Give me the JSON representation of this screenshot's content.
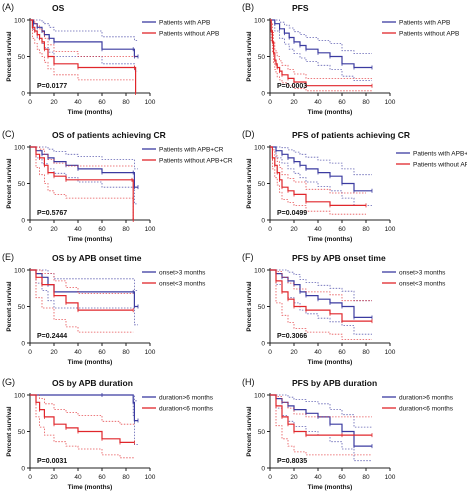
{
  "colors": {
    "blue": "#3b3ba0",
    "red": "#e0262b",
    "axis": "#222222"
  },
  "chart_data": [
    {
      "type": "line",
      "panel_label": "(A)",
      "title": "OS",
      "xlabel": "Time (months)",
      "ylabel": "Percent survival",
      "xticks": [
        "0",
        "20",
        "40",
        "60",
        "80",
        "100"
      ],
      "yticks": [
        "0",
        "50",
        "100"
      ],
      "xlim": [
        0,
        100
      ],
      "ylim": [
        0,
        100
      ],
      "pvalue": "P=0.0177",
      "legend": "top-right",
      "series": [
        {
          "name": "Patients with APB",
          "color": "blue",
          "x": [
            0,
            3,
            6,
            10,
            12,
            16,
            20,
            60,
            86,
            87,
            90
          ],
          "y": [
            100,
            95,
            90,
            85,
            80,
            75,
            70,
            60,
            60,
            50,
            50
          ],
          "ci_upper": [
            100,
            100,
            100,
            97,
            95,
            90,
            85,
            77,
            77,
            72,
            72
          ],
          "ci_lower": [
            100,
            85,
            75,
            68,
            62,
            56,
            50,
            40,
            40,
            30,
            30
          ]
        },
        {
          "name": "Patients without APB",
          "color": "red",
          "x": [
            0,
            2,
            4,
            6,
            8,
            10,
            12,
            15,
            20,
            40,
            87,
            88
          ],
          "y": [
            100,
            90,
            85,
            80,
            75,
            70,
            60,
            50,
            40,
            35,
            35,
            0
          ],
          "ci_upper": [
            100,
            100,
            95,
            92,
            88,
            84,
            75,
            66,
            57,
            50,
            50,
            50
          ],
          "ci_lower": [
            100,
            75,
            68,
            60,
            55,
            50,
            42,
            33,
            25,
            18,
            18,
            0
          ]
        }
      ]
    },
    {
      "type": "line",
      "panel_label": "(B)",
      "title": "PFS",
      "xlabel": "Time (months)",
      "ylabel": "Percent survival",
      "xticks": [
        "0",
        "20",
        "40",
        "60",
        "80",
        "100"
      ],
      "yticks": [
        "0",
        "50",
        "100"
      ],
      "xlim": [
        0,
        100
      ],
      "ylim": [
        0,
        100
      ],
      "pvalue": "P=0.0003",
      "legend": "top-right",
      "series": [
        {
          "name": "Patients with APB",
          "color": "blue",
          "x": [
            0,
            4,
            8,
            12,
            16,
            20,
            25,
            30,
            40,
            50,
            60,
            70,
            85
          ],
          "y": [
            100,
            95,
            88,
            82,
            76,
            70,
            65,
            60,
            55,
            50,
            40,
            35,
            35
          ],
          "ci_upper": [
            100,
            100,
            97,
            93,
            89,
            84,
            80,
            76,
            72,
            68,
            58,
            54,
            54
          ],
          "ci_lower": [
            100,
            85,
            75,
            67,
            60,
            54,
            48,
            43,
            38,
            32,
            23,
            17,
            17
          ]
        },
        {
          "name": "Patients without APB",
          "color": "red",
          "x": [
            0,
            1,
            2,
            3,
            4,
            5,
            6,
            8,
            10,
            15,
            20,
            30,
            85
          ],
          "y": [
            100,
            85,
            70,
            55,
            45,
            40,
            35,
            30,
            25,
            20,
            15,
            10,
            10
          ],
          "ci_upper": [
            100,
            95,
            83,
            70,
            60,
            55,
            50,
            44,
            38,
            32,
            26,
            20,
            20
          ],
          "ci_lower": [
            100,
            72,
            56,
            41,
            32,
            27,
            22,
            18,
            14,
            10,
            6,
            3,
            3
          ]
        }
      ]
    },
    {
      "type": "line",
      "panel_label": "(C)",
      "title": "OS of patients achieving CR",
      "xlabel": "Time (months)",
      "ylabel": "Percent survival",
      "xticks": [
        "0",
        "20",
        "40",
        "60",
        "80",
        "100"
      ],
      "yticks": [
        "0",
        "50",
        "100"
      ],
      "xlim": [
        0,
        100
      ],
      "ylim": [
        0,
        100
      ],
      "pvalue": "P=0.5767",
      "legend": "top-right",
      "series": [
        {
          "name": "Patients with APB+CR",
          "color": "blue",
          "x": [
            0,
            5,
            10,
            15,
            20,
            30,
            40,
            60,
            86,
            87,
            90
          ],
          "y": [
            100,
            95,
            90,
            85,
            80,
            75,
            70,
            65,
            65,
            45,
            45
          ],
          "ci_upper": [
            100,
            100,
            100,
            97,
            94,
            90,
            87,
            83,
            83,
            70,
            70
          ],
          "ci_lower": [
            100,
            85,
            77,
            70,
            64,
            58,
            52,
            45,
            45,
            22,
            22
          ]
        },
        {
          "name": "Patients without APB+CR",
          "color": "red",
          "x": [
            0,
            5,
            8,
            12,
            15,
            20,
            30,
            85,
            86
          ],
          "y": [
            100,
            90,
            85,
            75,
            65,
            60,
            55,
            55,
            0
          ],
          "ci_upper": [
            100,
            100,
            97,
            90,
            83,
            78,
            74,
            74,
            74
          ],
          "ci_lower": [
            100,
            72,
            62,
            50,
            40,
            35,
            30,
            30,
            0
          ]
        }
      ]
    },
    {
      "type": "line",
      "panel_label": "(D)",
      "title": "PFS of patients achieving CR",
      "xlabel": "Time (months)",
      "ylabel": "Percent survival",
      "xticks": [
        "0",
        "20",
        "40",
        "60",
        "80",
        "100"
      ],
      "yticks": [
        "0",
        "50",
        "100"
      ],
      "xlim": [
        0,
        100
      ],
      "ylim": [
        0,
        100
      ],
      "pvalue": "P=0.0499",
      "legend": "right",
      "series": [
        {
          "name": "Patients with APB+CR",
          "color": "blue",
          "x": [
            0,
            5,
            10,
            15,
            20,
            25,
            30,
            40,
            50,
            60,
            70,
            85
          ],
          "y": [
            100,
            95,
            90,
            85,
            80,
            75,
            70,
            65,
            60,
            50,
            40,
            40
          ],
          "ci_upper": [
            100,
            100,
            99,
            96,
            93,
            90,
            86,
            82,
            78,
            70,
            62,
            62
          ],
          "ci_lower": [
            100,
            85,
            78,
            70,
            64,
            58,
            52,
            46,
            40,
            30,
            20,
            20
          ]
        },
        {
          "name": "Patients without APB+CR",
          "color": "red",
          "x": [
            0,
            2,
            4,
            6,
            8,
            10,
            15,
            20,
            30,
            50,
            80
          ],
          "y": [
            100,
            85,
            75,
            65,
            55,
            45,
            40,
            35,
            25,
            20,
            20
          ],
          "ci_upper": [
            100,
            96,
            88,
            80,
            72,
            62,
            57,
            52,
            42,
            37,
            37
          ],
          "ci_lower": [
            100,
            70,
            58,
            48,
            38,
            28,
            24,
            20,
            12,
            8,
            8
          ]
        }
      ]
    },
    {
      "type": "line",
      "panel_label": "(E)",
      "title": "OS by APB onset time",
      "xlabel": "Time (months)",
      "ylabel": "Percent survival",
      "xticks": [
        "0",
        "20",
        "40",
        "60",
        "80",
        "100"
      ],
      "yticks": [
        "0",
        "50",
        "100"
      ],
      "xlim": [
        0,
        100
      ],
      "ylim": [
        0,
        100
      ],
      "pvalue": "P=0.2444",
      "legend": "top-right",
      "series": [
        {
          "name": "onset>3 months",
          "color": "blue",
          "x": [
            0,
            5,
            10,
            15,
            20,
            86,
            87,
            90
          ],
          "y": [
            100,
            95,
            90,
            80,
            70,
            70,
            50,
            50
          ],
          "ci_upper": [
            100,
            100,
            100,
            95,
            88,
            88,
            72,
            72
          ],
          "ci_lower": [
            100,
            82,
            72,
            58,
            48,
            48,
            25,
            25
          ]
        },
        {
          "name": "onset<3 months",
          "color": "red",
          "x": [
            0,
            5,
            10,
            20,
            30,
            40,
            86
          ],
          "y": [
            100,
            90,
            80,
            65,
            55,
            45,
            45
          ],
          "ci_upper": [
            100,
            100,
            95,
            85,
            76,
            68,
            68
          ],
          "ci_lower": [
            100,
            62,
            48,
            32,
            22,
            15,
            15
          ]
        }
      ]
    },
    {
      "type": "line",
      "panel_label": "(F)",
      "title": "PFS by APB onset time",
      "xlabel": "Time (months)",
      "ylabel": "Percent survival",
      "xticks": [
        "0",
        "20",
        "40",
        "60",
        "80",
        "100"
      ],
      "yticks": [
        "0",
        "50",
        "100"
      ],
      "xlim": [
        0,
        100
      ],
      "ylim": [
        0,
        100
      ],
      "pvalue": "P=0.3066",
      "legend": "top-right",
      "series": [
        {
          "name": "onset>3 months",
          "color": "blue",
          "x": [
            0,
            5,
            10,
            15,
            20,
            25,
            30,
            40,
            50,
            60,
            70,
            85
          ],
          "y": [
            100,
            95,
            90,
            85,
            80,
            70,
            65,
            60,
            55,
            50,
            35,
            35
          ],
          "ci_upper": [
            100,
            100,
            100,
            97,
            94,
            87,
            83,
            79,
            75,
            71,
            58,
            58
          ],
          "ci_lower": [
            100,
            80,
            70,
            62,
            55,
            45,
            40,
            34,
            29,
            24,
            12,
            12
          ]
        },
        {
          "name": "onset<3 months",
          "color": "red",
          "x": [
            0,
            5,
            10,
            15,
            20,
            30,
            50,
            60,
            85
          ],
          "y": [
            100,
            85,
            70,
            60,
            50,
            45,
            40,
            30,
            30
          ],
          "ci_upper": [
            100,
            98,
            90,
            82,
            74,
            70,
            66,
            58,
            58
          ],
          "ci_lower": [
            100,
            55,
            38,
            28,
            20,
            15,
            12,
            5,
            5
          ]
        }
      ]
    },
    {
      "type": "line",
      "panel_label": "(G)",
      "title": "OS by APB duration",
      "xlabel": "Time (months)",
      "ylabel": "Percent survival",
      "xticks": [
        "0",
        "20",
        "40",
        "60",
        "80",
        "100"
      ],
      "yticks": [
        "0",
        "50",
        "100"
      ],
      "xlim": [
        0,
        100
      ],
      "ylim": [
        0,
        100
      ],
      "pvalue": "P=0.0031",
      "legend": "top-right",
      "series": [
        {
          "name": "duration>6 months",
          "color": "blue",
          "x": [
            0,
            60,
            86,
            87,
            90
          ],
          "y": [
            100,
            100,
            90,
            65,
            65
          ],
          "ci_upper": [
            100,
            100,
            100,
            92,
            92
          ],
          "ci_lower": [
            100,
            100,
            72,
            32,
            32
          ]
        },
        {
          "name": "duration<6 months",
          "color": "red",
          "x": [
            0,
            5,
            8,
            12,
            20,
            30,
            40,
            60,
            75,
            87
          ],
          "y": [
            100,
            90,
            80,
            70,
            60,
            55,
            50,
            40,
            35,
            35
          ],
          "ci_upper": [
            100,
            100,
            95,
            88,
            80,
            76,
            72,
            64,
            60,
            60
          ],
          "ci_lower": [
            100,
            70,
            56,
            45,
            36,
            30,
            26,
            18,
            14,
            14
          ]
        }
      ]
    },
    {
      "type": "line",
      "panel_label": "(H)",
      "title": "PFS by APB duration",
      "xlabel": "Time (months)",
      "ylabel": "Percent survival",
      "xticks": [
        "0",
        "20",
        "40",
        "60",
        "80",
        "100"
      ],
      "yticks": [
        "0",
        "50",
        "100"
      ],
      "xlim": [
        0,
        100
      ],
      "ylim": [
        0,
        100
      ],
      "pvalue": "P=0.8035",
      "legend": "top-right",
      "series": [
        {
          "name": "duration>6 months",
          "color": "blue",
          "x": [
            0,
            5,
            10,
            15,
            20,
            30,
            40,
            50,
            60,
            70,
            85
          ],
          "y": [
            100,
            95,
            90,
            85,
            80,
            75,
            70,
            60,
            50,
            30,
            30
          ],
          "ci_upper": [
            100,
            100,
            100,
            97,
            94,
            91,
            88,
            80,
            73,
            56,
            56
          ],
          "ci_lower": [
            100,
            82,
            72,
            64,
            57,
            50,
            45,
            36,
            26,
            10,
            10
          ]
        },
        {
          "name": "duration<6 months",
          "color": "red",
          "x": [
            0,
            5,
            10,
            15,
            20,
            30,
            60,
            85
          ],
          "y": [
            100,
            85,
            70,
            60,
            50,
            45,
            45,
            45
          ],
          "ci_upper": [
            100,
            98,
            90,
            82,
            74,
            70,
            70,
            70
          ],
          "ci_lower": [
            100,
            58,
            40,
            30,
            22,
            18,
            18,
            18
          ]
        }
      ]
    }
  ]
}
